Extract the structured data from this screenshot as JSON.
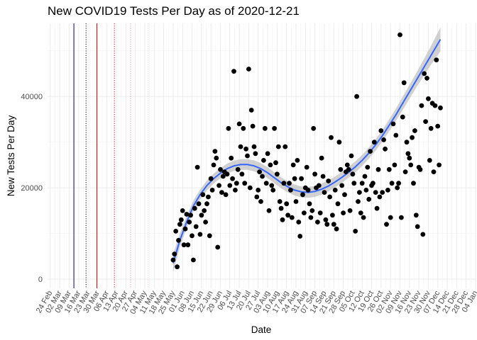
{
  "chart_data": {
    "type": "scatter",
    "title": "New COVID19 Tests Per Day as of 2020-12-21",
    "xlabel": "Date",
    "ylabel": "New Tests Per Day",
    "y_ticks": [
      0,
      20000,
      40000
    ],
    "y_tick_labels": [
      "0",
      "20000",
      "40000"
    ],
    "ylim": [
      -2000,
      56000
    ],
    "x_ticks": [
      {
        "day": 0,
        "label": "24 Feb"
      },
      {
        "day": 7,
        "label": "02 Mar"
      },
      {
        "day": 14,
        "label": "09 Mar"
      },
      {
        "day": 21,
        "label": "16 Mar"
      },
      {
        "day": 28,
        "label": "23 Mar"
      },
      {
        "day": 35,
        "label": "30 Mar"
      },
      {
        "day": 42,
        "label": "06 Apr"
      },
      {
        "day": 49,
        "label": "13 Apr"
      },
      {
        "day": 56,
        "label": "20 Apr"
      },
      {
        "day": 63,
        "label": "27 Apr"
      },
      {
        "day": 70,
        "label": "04 May"
      },
      {
        "day": 77,
        "label": "11 May"
      },
      {
        "day": 84,
        "label": "18 May"
      },
      {
        "day": 91,
        "label": "25 May"
      },
      {
        "day": 98,
        "label": "01 Jun"
      },
      {
        "day": 105,
        "label": "08 Jun"
      },
      {
        "day": 112,
        "label": "15 Jun"
      },
      {
        "day": 119,
        "label": "22 Jun"
      },
      {
        "day": 126,
        "label": "29 Jun"
      },
      {
        "day": 133,
        "label": "06 Jul"
      },
      {
        "day": 140,
        "label": "13 Jul"
      },
      {
        "day": 147,
        "label": "20 Jul"
      },
      {
        "day": 154,
        "label": "27 Jul"
      },
      {
        "day": 161,
        "label": "03 Aug"
      },
      {
        "day": 168,
        "label": "10 Aug"
      },
      {
        "day": 175,
        "label": "17 Aug"
      },
      {
        "day": 182,
        "label": "24 Aug"
      },
      {
        "day": 189,
        "label": "31 Aug"
      },
      {
        "day": 196,
        "label": "07 Sep"
      },
      {
        "day": 203,
        "label": "14 Sep"
      },
      {
        "day": 210,
        "label": "21 Sep"
      },
      {
        "day": 217,
        "label": "28 Sep"
      },
      {
        "day": 224,
        "label": "05 Oct"
      },
      {
        "day": 231,
        "label": "12 Oct"
      },
      {
        "day": 238,
        "label": "19 Oct"
      },
      {
        "day": 245,
        "label": "26 Oct"
      },
      {
        "day": 252,
        "label": "02 Nov"
      },
      {
        "day": 259,
        "label": "09 Nov"
      },
      {
        "day": 266,
        "label": "16 Nov"
      },
      {
        "day": 273,
        "label": "23 Nov"
      },
      {
        "day": 280,
        "label": "30 Nov"
      },
      {
        "day": 287,
        "label": "07 Dec"
      },
      {
        "day": 294,
        "label": "14 Dec"
      },
      {
        "day": 301,
        "label": "21 Dec"
      },
      {
        "day": 308,
        "label": "28 Dec"
      },
      {
        "day": 315,
        "label": "04 Jan"
      }
    ],
    "xlim_days": [
      -2,
      315
    ],
    "vertical_lines": [
      {
        "day": 17.5,
        "color": "#00008b",
        "style": "solid"
      },
      {
        "day": 26.5,
        "color": "#000000",
        "style": "dotted"
      },
      {
        "day": 34.5,
        "color": "#e00000",
        "style": "solid"
      },
      {
        "day": 47.5,
        "color": "#e00000",
        "style": "dotted"
      },
      {
        "day": 59.5,
        "color": "#e890a8",
        "style": "dotted"
      },
      {
        "day": 72.5,
        "color": "#f0b8c8",
        "style": "dotted"
      }
    ],
    "point_color": "#000000",
    "smooth_color": "#3366ff",
    "band_color": "#bdbdbd",
    "points": [
      [
        91,
        4200
      ],
      [
        92,
        5500
      ],
      [
        93,
        10500
      ],
      [
        94,
        2700
      ],
      [
        95,
        8500
      ],
      [
        96,
        12000
      ],
      [
        97,
        13000
      ],
      [
        98,
        15000
      ],
      [
        99,
        7500
      ],
      [
        100,
        11000
      ],
      [
        101,
        14200
      ],
      [
        102,
        7500
      ],
      [
        103,
        12500
      ],
      [
        104,
        14000
      ],
      [
        105,
        9500
      ],
      [
        106,
        4200
      ],
      [
        107,
        15500
      ],
      [
        108,
        11500
      ],
      [
        109,
        24500
      ],
      [
        110,
        16500
      ],
      [
        111,
        9800
      ],
      [
        112,
        14000
      ],
      [
        113,
        18500
      ],
      [
        114,
        15000
      ],
      [
        115,
        12500
      ],
      [
        116,
        16500
      ],
      [
        117,
        18000
      ],
      [
        118,
        9500
      ],
      [
        119,
        22000
      ],
      [
        120,
        19500
      ],
      [
        121,
        25000
      ],
      [
        122,
        28000
      ],
      [
        123,
        26500
      ],
      [
        124,
        7000
      ],
      [
        125,
        20500
      ],
      [
        126,
        24000
      ],
      [
        127,
        19000
      ],
      [
        128,
        22500
      ],
      [
        129,
        23500
      ],
      [
        130,
        18500
      ],
      [
        131,
        23000
      ],
      [
        132,
        33000
      ],
      [
        133,
        20500
      ],
      [
        134,
        26500
      ],
      [
        135,
        22000
      ],
      [
        136,
        45500
      ],
      [
        137,
        19500
      ],
      [
        138,
        21000
      ],
      [
        139,
        24000
      ],
      [
        140,
        34000
      ],
      [
        141,
        29000
      ],
      [
        142,
        23000
      ],
      [
        143,
        33000
      ],
      [
        144,
        21000
      ],
      [
        145,
        28500
      ],
      [
        146,
        27000
      ],
      [
        147,
        46000
      ],
      [
        148,
        20000
      ],
      [
        149,
        37000
      ],
      [
        150,
        33500
      ],
      [
        151,
        29000
      ],
      [
        152,
        27500
      ],
      [
        153,
        18000
      ],
      [
        154,
        19500
      ],
      [
        155,
        23500
      ],
      [
        156,
        17000
      ],
      [
        157,
        22500
      ],
      [
        158,
        26000
      ],
      [
        159,
        33000
      ],
      [
        160,
        21000
      ],
      [
        161,
        27500
      ],
      [
        162,
        15000
      ],
      [
        163,
        25000
      ],
      [
        164,
        20500
      ],
      [
        165,
        19500
      ],
      [
        166,
        33000
      ],
      [
        167,
        25500
      ],
      [
        168,
        23000
      ],
      [
        169,
        29000
      ],
      [
        170,
        17000
      ],
      [
        171,
        15500
      ],
      [
        172,
        13000
      ],
      [
        173,
        21000
      ],
      [
        174,
        29000
      ],
      [
        175,
        16500
      ],
      [
        176,
        14000
      ],
      [
        177,
        21000
      ],
      [
        178,
        19500
      ],
      [
        179,
        13500
      ],
      [
        180,
        25000
      ],
      [
        181,
        22000
      ],
      [
        182,
        17000
      ],
      [
        183,
        26000
      ],
      [
        184,
        12500
      ],
      [
        185,
        9400
      ],
      [
        186,
        22000
      ],
      [
        187,
        18500
      ],
      [
        188,
        14500
      ],
      [
        189,
        20000
      ],
      [
        190,
        24500
      ],
      [
        191,
        19500
      ],
      [
        192,
        16500
      ],
      [
        193,
        13500
      ],
      [
        194,
        15000
      ],
      [
        195,
        33000
      ],
      [
        196,
        23000
      ],
      [
        197,
        20000
      ],
      [
        198,
        12500
      ],
      [
        199,
        20500
      ],
      [
        200,
        14500
      ],
      [
        201,
        26500
      ],
      [
        202,
        22500
      ],
      [
        203,
        19000
      ],
      [
        204,
        13000
      ],
      [
        205,
        12000
      ],
      [
        206,
        21500
      ],
      [
        207,
        18000
      ],
      [
        208,
        31000
      ],
      [
        209,
        14000
      ],
      [
        210,
        12000
      ],
      [
        211,
        19500
      ],
      [
        212,
        11000
      ],
      [
        213,
        16500
      ],
      [
        214,
        30000
      ],
      [
        215,
        24000
      ],
      [
        216,
        20500
      ],
      [
        217,
        14500
      ],
      [
        218,
        18500
      ],
      [
        219,
        23500
      ],
      [
        220,
        25000
      ],
      [
        221,
        24000
      ],
      [
        222,
        15000
      ],
      [
        223,
        27000
      ],
      [
        224,
        23000
      ],
      [
        225,
        21000
      ],
      [
        226,
        10500
      ],
      [
        227,
        40000
      ],
      [
        228,
        17000
      ],
      [
        229,
        19000
      ],
      [
        230,
        14500
      ],
      [
        231,
        21000
      ],
      [
        232,
        13500
      ],
      [
        233,
        22500
      ],
      [
        234,
        19500
      ],
      [
        235,
        24500
      ],
      [
        236,
        17500
      ],
      [
        237,
        28000
      ],
      [
        238,
        20500
      ],
      [
        239,
        21000
      ],
      [
        240,
        30000
      ],
      [
        241,
        19000
      ],
      [
        242,
        15500
      ],
      [
        243,
        24000
      ],
      [
        244,
        18000
      ],
      [
        245,
        32500
      ],
      [
        246,
        19000
      ],
      [
        247,
        30500
      ],
      [
        248,
        28500
      ],
      [
        249,
        12000
      ],
      [
        250,
        19500
      ],
      [
        251,
        24000
      ],
      [
        252,
        13500
      ],
      [
        253,
        21000
      ],
      [
        254,
        34000
      ],
      [
        255,
        25000
      ],
      [
        256,
        31500
      ],
      [
        257,
        20000
      ],
      [
        258,
        21000
      ],
      [
        259,
        53500
      ],
      [
        260,
        13500
      ],
      [
        261,
        35500
      ],
      [
        262,
        43000
      ],
      [
        263,
        23500
      ],
      [
        264,
        30000
      ],
      [
        265,
        27500
      ],
      [
        266,
        26500
      ],
      [
        267,
        25000
      ],
      [
        268,
        31000
      ],
      [
        269,
        21000
      ],
      [
        270,
        32500
      ],
      [
        271,
        14000
      ],
      [
        272,
        11500
      ],
      [
        273,
        24500
      ],
      [
        274,
        24000
      ],
      [
        275,
        38000
      ],
      [
        276,
        9800
      ],
      [
        277,
        45000
      ],
      [
        278,
        34500
      ],
      [
        279,
        44000
      ],
      [
        280,
        39500
      ],
      [
        281,
        26000
      ],
      [
        282,
        33000
      ],
      [
        283,
        38500
      ],
      [
        284,
        23500
      ],
      [
        285,
        38000
      ],
      [
        286,
        48000
      ],
      [
        287,
        33500
      ],
      [
        288,
        25000
      ],
      [
        289,
        37500
      ]
    ],
    "smooth": [
      [
        91,
        3500
      ],
      [
        96,
        8500
      ],
      [
        101,
        12500
      ],
      [
        106,
        16000
      ],
      [
        111,
        18500
      ],
      [
        116,
        20500
      ],
      [
        121,
        22000
      ],
      [
        126,
        23200
      ],
      [
        131,
        24200
      ],
      [
        136,
        24800
      ],
      [
        141,
        25100
      ],
      [
        146,
        25100
      ],
      [
        151,
        24800
      ],
      [
        156,
        24200
      ],
      [
        161,
        23300
      ],
      [
        166,
        22200
      ],
      [
        171,
        21100
      ],
      [
        176,
        20200
      ],
      [
        181,
        19500
      ],
      [
        186,
        19100
      ],
      [
        191,
        19000
      ],
      [
        196,
        19200
      ],
      [
        201,
        19700
      ],
      [
        206,
        20400
      ],
      [
        211,
        21300
      ],
      [
        216,
        22300
      ],
      [
        221,
        23400
      ],
      [
        226,
        24600
      ],
      [
        231,
        26000
      ],
      [
        236,
        27600
      ],
      [
        241,
        29400
      ],
      [
        246,
        31400
      ],
      [
        251,
        33700
      ],
      [
        256,
        36000
      ],
      [
        261,
        38500
      ],
      [
        266,
        41000
      ],
      [
        271,
        43500
      ],
      [
        276,
        46000
      ],
      [
        281,
        48500
      ],
      [
        286,
        51000
      ],
      [
        289,
        52500
      ]
    ],
    "band_halfwidth": [
      [
        91,
        2000
      ],
      [
        96,
        1500
      ],
      [
        101,
        1300
      ],
      [
        111,
        1100
      ],
      [
        131,
        1100
      ],
      [
        151,
        1200
      ],
      [
        171,
        1200
      ],
      [
        191,
        1200
      ],
      [
        211,
        1200
      ],
      [
        231,
        1200
      ],
      [
        251,
        1300
      ],
      [
        271,
        1600
      ],
      [
        281,
        2000
      ],
      [
        289,
        2600
      ]
    ]
  }
}
